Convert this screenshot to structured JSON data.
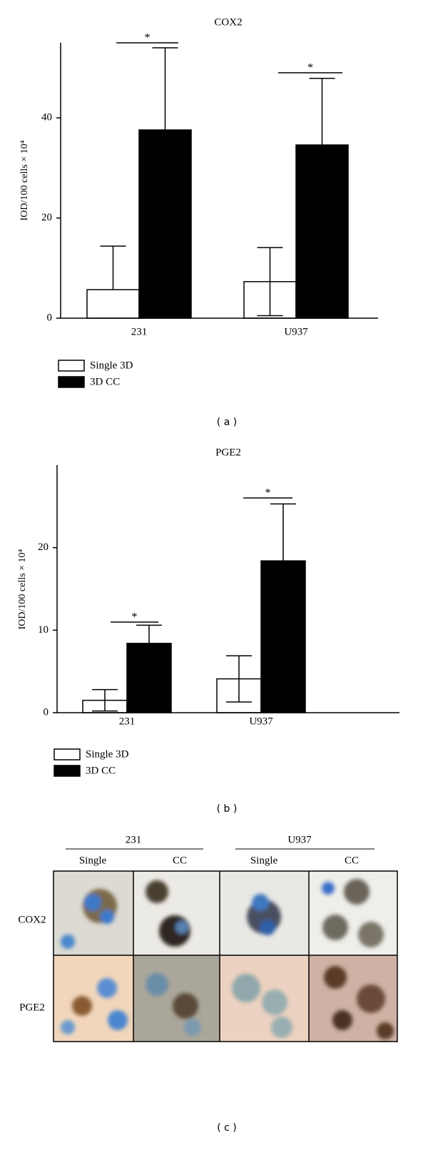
{
  "chart_data": [
    {
      "type": "bar",
      "title": "COX2",
      "y_label": "IOD/100 cells × 10⁴",
      "categories": [
        "231",
        "U937"
      ],
      "series": [
        {
          "name": "Single 3D",
          "color": "#ffffff",
          "values": [
            5.7,
            7.3
          ],
          "errors": [
            8.7,
            6.8
          ]
        },
        {
          "name": "3D CC",
          "color": "#000000",
          "values": [
            37.6,
            34.6
          ],
          "errors": [
            16.4,
            13.3
          ]
        }
      ],
      "ylim": [
        0,
        55
      ],
      "yticks": [
        0,
        20,
        40
      ],
      "annotations": [
        "*",
        "*"
      ]
    },
    {
      "type": "bar",
      "title": "PGE2",
      "y_label": "IOD/100 cells × 10⁴",
      "categories": [
        "231",
        "U937"
      ],
      "series": [
        {
          "name": "Single 3D",
          "color": "#ffffff",
          "values": [
            1.5,
            4.1
          ],
          "errors": [
            1.3,
            2.8
          ]
        },
        {
          "name": "3D CC",
          "color": "#000000",
          "values": [
            8.4,
            18.4
          ],
          "errors": [
            2.2,
            6.9
          ]
        }
      ],
      "ylim": [
        0,
        30
      ],
      "yticks": [
        0,
        10,
        20
      ],
      "annotations": [
        "*",
        "*"
      ]
    }
  ],
  "panel_labels": [
    "( a )",
    "( b )",
    "( c )"
  ],
  "micrographs": {
    "columns": [
      {
        "title": "231",
        "subs": [
          "Single",
          "CC"
        ]
      },
      {
        "title": "U937",
        "subs": [
          "Single",
          "CC"
        ]
      }
    ],
    "rows": [
      "COX2",
      "PGE2"
    ]
  }
}
